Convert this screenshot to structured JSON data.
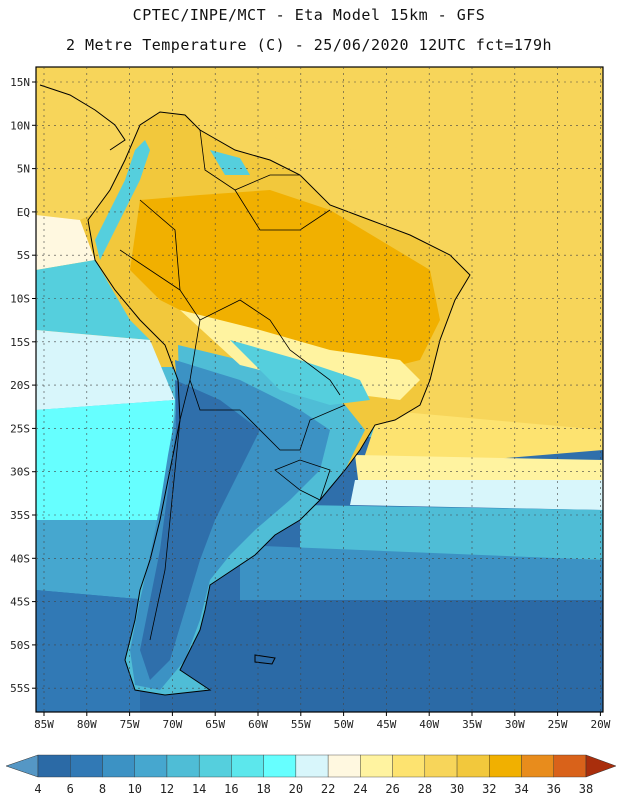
{
  "header": {
    "line1": "CPTEC/INPE/MCT  -   Eta Model 15km  -  GFS",
    "line2": "2 Metre Temperature (C) - 25/06/2020 12UTC fct=179h"
  },
  "axes": {
    "lat_labels": [
      "15N",
      "10N",
      "5N",
      "EQ",
      "5S",
      "10S",
      "15S",
      "20S",
      "25S",
      "30S",
      "35S",
      "40S",
      "45S",
      "50S",
      "55S"
    ],
    "lon_labels": [
      "85W",
      "80W",
      "75W",
      "70W",
      "65W",
      "60W",
      "55W",
      "50W",
      "45W",
      "40W",
      "35W",
      "30W",
      "25W",
      "20W"
    ]
  },
  "colorbar": {
    "labels": [
      "4",
      "6",
      "8",
      "10",
      "12",
      "14",
      "16",
      "18",
      "20",
      "22",
      "24",
      "26",
      "28",
      "30",
      "32",
      "34",
      "36",
      "38"
    ],
    "colors": [
      "#2b6aa6",
      "#3179b5",
      "#3c92c4",
      "#46a7cf",
      "#4fbdd6",
      "#55cfdd",
      "#5ce7ec",
      "#66ffff",
      "#d8f6fb",
      "#fff8e0",
      "#fff3a0",
      "#fde370",
      "#f7d55a",
      "#f2c83c",
      "#f1b000",
      "#e88c1c",
      "#d9621a",
      "#bd3a10"
    ],
    "low_color": "#5597c5",
    "high_color": "#a92e0c"
  }
}
